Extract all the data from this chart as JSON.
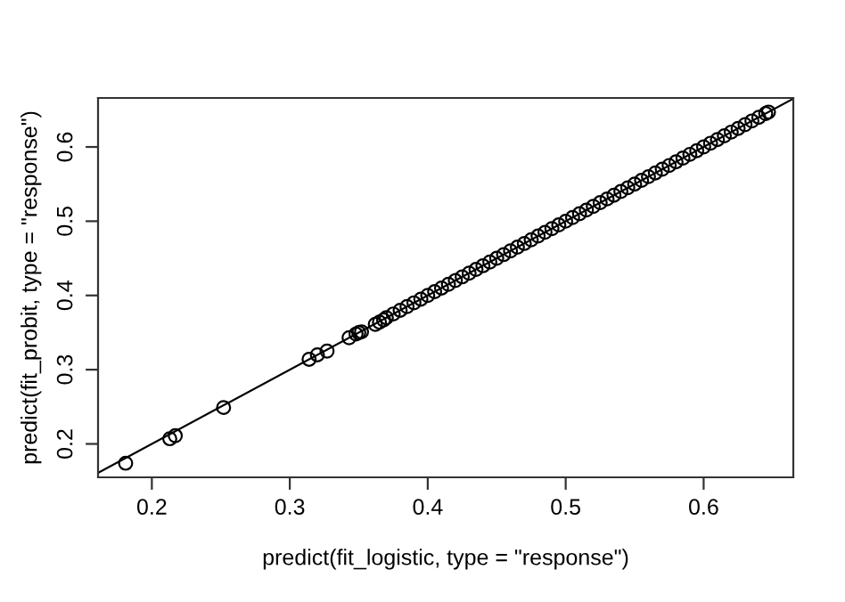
{
  "chart_data": {
    "type": "scatter",
    "xlabel": "predict(fit_logistic, type = \"response\")",
    "ylabel": "predict(fit_probit, type = \"response\")",
    "xlim": [
      0.161,
      0.665
    ],
    "ylim": [
      0.155,
      0.666
    ],
    "xticks": [
      0.2,
      0.3,
      0.4,
      0.5,
      0.6
    ],
    "yticks": [
      0.2,
      0.3,
      0.4,
      0.5,
      0.6
    ],
    "grid": false,
    "legend": false,
    "series": [
      {
        "marker": "circle",
        "color": "#000000",
        "x": [
          0.181,
          0.213,
          0.217,
          0.252,
          0.314,
          0.32,
          0.327,
          0.343,
          0.348,
          0.35,
          0.352,
          0.362,
          0.365,
          0.368,
          0.37,
          0.375,
          0.38,
          0.385,
          0.39,
          0.395,
          0.4,
          0.405,
          0.41,
          0.415,
          0.42,
          0.425,
          0.43,
          0.435,
          0.44,
          0.445,
          0.45,
          0.455,
          0.46,
          0.465,
          0.47,
          0.475,
          0.48,
          0.485,
          0.49,
          0.495,
          0.5,
          0.505,
          0.51,
          0.515,
          0.52,
          0.525,
          0.53,
          0.535,
          0.54,
          0.545,
          0.55,
          0.555,
          0.56,
          0.565,
          0.57,
          0.575,
          0.58,
          0.585,
          0.59,
          0.595,
          0.6,
          0.605,
          0.61,
          0.615,
          0.62,
          0.625,
          0.63,
          0.635,
          0.64,
          0.645,
          0.647
        ],
        "values": [
          0.174,
          0.207,
          0.211,
          0.249,
          0.314,
          0.32,
          0.325,
          0.343,
          0.348,
          0.35,
          0.351,
          0.361,
          0.364,
          0.367,
          0.37,
          0.375,
          0.38,
          0.385,
          0.39,
          0.395,
          0.4,
          0.405,
          0.41,
          0.415,
          0.42,
          0.425,
          0.43,
          0.435,
          0.44,
          0.445,
          0.45,
          0.455,
          0.46,
          0.465,
          0.47,
          0.475,
          0.48,
          0.485,
          0.49,
          0.495,
          0.5,
          0.505,
          0.51,
          0.515,
          0.52,
          0.525,
          0.53,
          0.535,
          0.54,
          0.545,
          0.55,
          0.555,
          0.56,
          0.565,
          0.57,
          0.575,
          0.58,
          0.585,
          0.59,
          0.595,
          0.6,
          0.605,
          0.61,
          0.615,
          0.62,
          0.625,
          0.63,
          0.635,
          0.64,
          0.645,
          0.647
        ]
      },
      {
        "type": "line",
        "marker": "none",
        "line_style": "solid",
        "color": "#000000",
        "x": [
          0.161,
          0.665
        ],
        "values": [
          0.161,
          0.665
        ]
      }
    ]
  }
}
